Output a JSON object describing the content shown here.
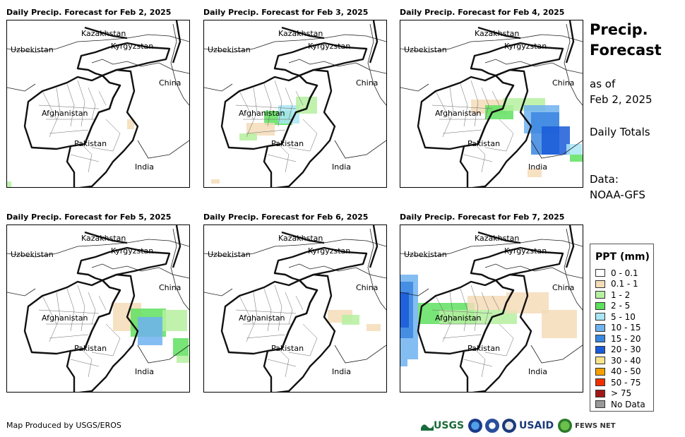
{
  "panels": [
    {
      "title": "Daily Precip. Forecast for Feb 2, 2025",
      "precip": "d2"
    },
    {
      "title": "Daily Precip. Forecast for Feb 3, 2025",
      "precip": "d3"
    },
    {
      "title": "Daily Precip. Forecast for Feb 4, 2025",
      "precip": "d4"
    },
    {
      "title": "Daily Precip. Forecast for Feb 5, 2025",
      "precip": "d5"
    },
    {
      "title": "Daily Precip. Forecast for Feb 6, 2025",
      "precip": "d6"
    },
    {
      "title": "Daily Precip. Forecast for Feb 7, 2025",
      "precip": "d7"
    }
  ],
  "map_labels": {
    "kazakhstan": "Kazakhstan",
    "uzbekistan": "Uzbekistan",
    "kyrgyzstan": "Kyrgyzstan",
    "china": "China",
    "afghanistan": "Afghanistan",
    "pakistan": "Pakistan",
    "india": "India"
  },
  "sidebar": {
    "title_line1": "Precip.",
    "title_line2": "Forecast",
    "asof_line1": "as of",
    "asof_line2": "Feb 2, 2025",
    "totals": "Daily Totals",
    "data_line1": "Data:",
    "data_line2": "NOAA-GFS"
  },
  "legend": {
    "title": "PPT (mm)",
    "items": [
      {
        "label": "0 - 0.1",
        "color": "#ffffff"
      },
      {
        "label": "0.1 - 1",
        "color": "#f5dcb8"
      },
      {
        "label": "1 - 2",
        "color": "#b5f0a0"
      },
      {
        "label": "2 - 5",
        "color": "#5fe05f"
      },
      {
        "label": "5 - 10",
        "color": "#a8e6f5"
      },
      {
        "label": "10 - 15",
        "color": "#6fb2f0"
      },
      {
        "label": "15 - 20",
        "color": "#3a86e0"
      },
      {
        "label": "20 - 30",
        "color": "#1a5ad8"
      },
      {
        "label": "30 - 40",
        "color": "#fae38a"
      },
      {
        "label": "40 - 50",
        "color": "#f5a000"
      },
      {
        "label": "50 - 75",
        "color": "#ee3000"
      },
      {
        "label": "> 75",
        "color": "#a01818"
      },
      {
        "label": "No Data",
        "color": "#999999"
      }
    ]
  },
  "footer": {
    "credit": "Map Produced by USGS/EROS",
    "logo_usgs": "USGS",
    "logo_usaid": "USAID",
    "logo_fews": "FEWS NET"
  }
}
